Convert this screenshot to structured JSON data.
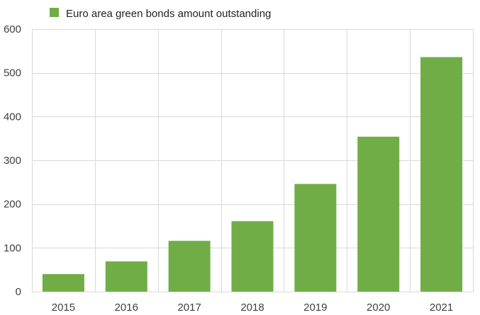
{
  "chart_data": {
    "type": "bar",
    "categories": [
      "2015",
      "2016",
      "2017",
      "2018",
      "2019",
      "2020",
      "2021"
    ],
    "series": [
      {
        "name": "Euro area green bonds amount outstanding",
        "values": [
          40,
          69,
          116,
          161,
          246,
          354,
          536
        ],
        "color": "#70ad47"
      }
    ],
    "yticks": [
      "0",
      "100",
      "200",
      "300",
      "400",
      "500",
      "600"
    ],
    "ylim": [
      0,
      600
    ],
    "grid": true,
    "legend": "top-left",
    "title": "",
    "xlabel": "",
    "ylabel": ""
  }
}
